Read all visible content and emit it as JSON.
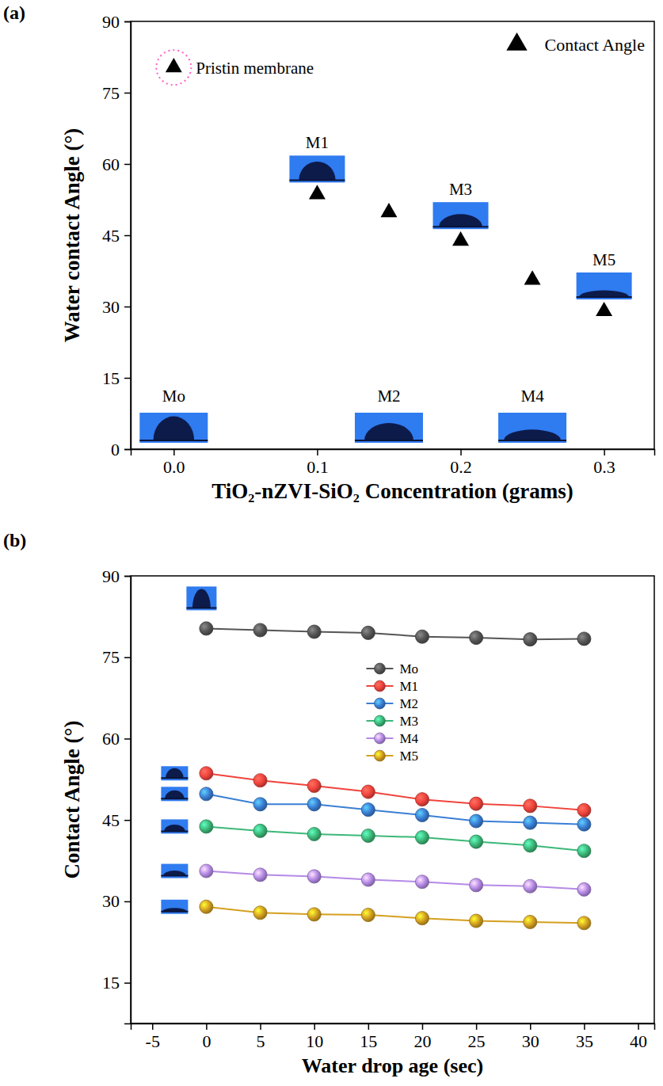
{
  "chart_data": [
    {
      "type": "scatter",
      "title": "(a)",
      "x_label": "TiO₂-nZVI-SiO₂ Concentration (grams)",
      "y_label": "Water contact Angle (°)",
      "x": [
        0,
        0.1,
        0.15,
        0.2,
        0.25,
        0.3
      ],
      "series": [
        {
          "name": "Contact Angle",
          "color": "#000000",
          "marker": "triangle",
          "values": [
            80.3,
            53.6,
            49.8,
            43.8,
            35.6,
            29.0
          ]
        }
      ],
      "point_labels": [
        "Mo",
        "M1",
        "M2",
        "M3",
        "M4",
        "M5"
      ],
      "annotations": [
        "Pristin membrane"
      ],
      "xlim": [
        -0.03,
        0.335
      ],
      "xticks": [
        {
          "value": 0,
          "label": "0.0"
        },
        0.1,
        0.2,
        0.3
      ],
      "ylim": [
        0,
        90
      ],
      "yticks": [
        0,
        15,
        30,
        45,
        60,
        75,
        90
      ],
      "grid": false,
      "legend": "top right"
    },
    {
      "type": "line",
      "title": "(b)",
      "x_label": "Water drop age (sec)",
      "y_label": "Contact Angle (°)",
      "x": [
        0,
        5,
        10,
        15,
        20,
        25,
        30,
        35
      ],
      "series": [
        {
          "name": "Mo",
          "color": "#555555",
          "marker": "circle",
          "values": [
            80.3,
            80.0,
            79.7,
            79.5,
            78.8,
            78.6,
            78.3,
            78.4
          ]
        },
        {
          "name": "M1",
          "color": "#f0443c",
          "marker": "circle",
          "values": [
            53.6,
            52.3,
            51.3,
            50.2,
            48.8,
            48.0,
            47.6,
            46.8
          ]
        },
        {
          "name": "M2",
          "color": "#3a7fd5",
          "marker": "circle",
          "values": [
            49.8,
            47.9,
            47.9,
            46.9,
            45.9,
            44.8,
            44.5,
            44.2
          ]
        },
        {
          "name": "M3",
          "color": "#3cb878",
          "marker": "circle",
          "values": [
            43.8,
            43.0,
            42.4,
            42.1,
            41.8,
            41.0,
            40.3,
            39.3
          ]
        },
        {
          "name": "M4",
          "color": "#b58ae6",
          "marker": "circle",
          "values": [
            35.6,
            34.9,
            34.6,
            34.0,
            33.6,
            33.0,
            32.8,
            32.2
          ]
        },
        {
          "name": "M5",
          "color": "#d4a020",
          "marker": "circle",
          "values": [
            29.0,
            27.9,
            27.6,
            27.5,
            26.9,
            26.4,
            26.2,
            26.0
          ]
        }
      ],
      "xlim": [
        -7,
        41.5
      ],
      "xticks": [
        -5,
        0,
        5,
        10,
        15,
        20,
        25,
        30,
        35,
        40
      ],
      "ylim": [
        7.5,
        90
      ],
      "yticks": [
        15,
        30,
        45,
        60,
        75,
        90
      ],
      "grid": false,
      "legend": "top"
    }
  ]
}
